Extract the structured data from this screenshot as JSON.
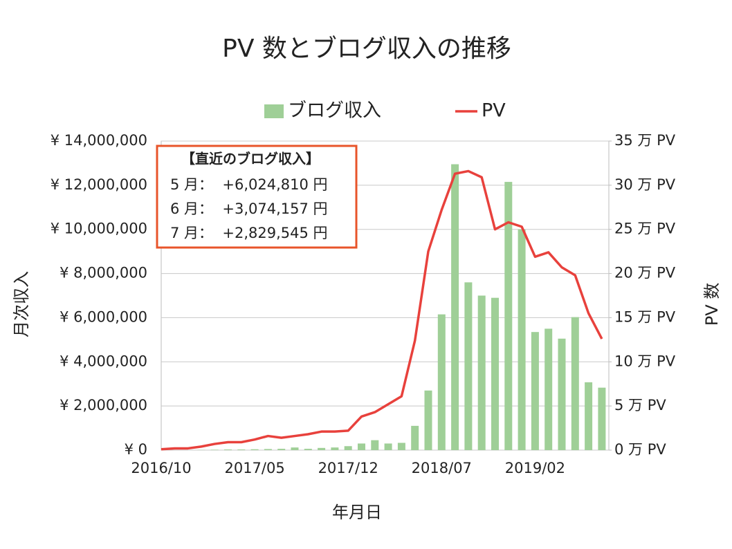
{
  "chart_data": {
    "type": "combo",
    "title": "PV 数とブログ収入の推移",
    "x_label": "年月日",
    "y_label": "月次収入",
    "y2_label": "PV 数",
    "categories": [
      "2016/10",
      null,
      null,
      null,
      null,
      null,
      null,
      "2017/05",
      null,
      null,
      null,
      null,
      null,
      null,
      "2017/12",
      null,
      null,
      null,
      null,
      null,
      null,
      "2018/07",
      null,
      null,
      null,
      null,
      null,
      null,
      "2019/02",
      null,
      null,
      null,
      null,
      null
    ],
    "series": [
      {
        "name": "ブログ収入",
        "type": "bar",
        "color": "#9fcf97",
        "axis": "y",
        "values": [
          0,
          0,
          0,
          10000,
          20000,
          30000,
          30000,
          40000,
          50000,
          60000,
          120000,
          60000,
          100000,
          120000,
          180000,
          300000,
          450000,
          300000,
          330000,
          1100000,
          2700000,
          6150000,
          12950000,
          7600000,
          7000000,
          6900000,
          12150000,
          10000000,
          5350000,
          5500000,
          5050000,
          6024810,
          3074157,
          2829545
        ]
      },
      {
        "name": "PV",
        "type": "line",
        "color": "#e8413c",
        "axis": "y2",
        "values": [
          0.1,
          0.2,
          0.2,
          0.4,
          0.7,
          0.9,
          0.9,
          1.2,
          1.6,
          1.4,
          1.6,
          1.8,
          2.1,
          2.1,
          2.2,
          3.8,
          4.3,
          5.2,
          6.1,
          12.4,
          22.5,
          27.2,
          31.3,
          31.6,
          30.9,
          25.0,
          25.8,
          25.3,
          21.9,
          22.4,
          20.7,
          19.8,
          15.5,
          12.6
        ]
      }
    ],
    "ylim": [
      0,
      14000000
    ],
    "yticks": [
      {
        "value": 0,
        "label": "¥ 0"
      },
      {
        "value": 2000000,
        "label": "¥ 2,000,000"
      },
      {
        "value": 4000000,
        "label": "¥ 4,000,000"
      },
      {
        "value": 6000000,
        "label": "¥ 6,000,000"
      },
      {
        "value": 8000000,
        "label": "¥ 8,000,000"
      },
      {
        "value": 10000000,
        "label": "¥ 10,000,000"
      },
      {
        "value": 12000000,
        "label": "¥ 12,000,000"
      },
      {
        "value": 14000000,
        "label": "¥ 14,000,000"
      }
    ],
    "y2lim": [
      0,
      35
    ],
    "y2ticks": [
      {
        "value": 0,
        "label": "0 万 PV"
      },
      {
        "value": 5,
        "label": "5 万 PV"
      },
      {
        "value": 10,
        "label": "10 万 PV"
      },
      {
        "value": 15,
        "label": "15 万 PV"
      },
      {
        "value": 20,
        "label": "20 万 PV"
      },
      {
        "value": 25,
        "label": "25 万 PV"
      },
      {
        "value": 30,
        "label": "30 万 PV"
      },
      {
        "value": 35,
        "label": "35 万 PV"
      }
    ],
    "grid": true,
    "legend": "top",
    "annotation": {
      "title": "【直近のブログ収入】",
      "lines": [
        "5 月：  +6,024,810 円",
        "6 月：  +3,074,157 円",
        "7 月：  +2,829,545 円"
      ]
    }
  }
}
